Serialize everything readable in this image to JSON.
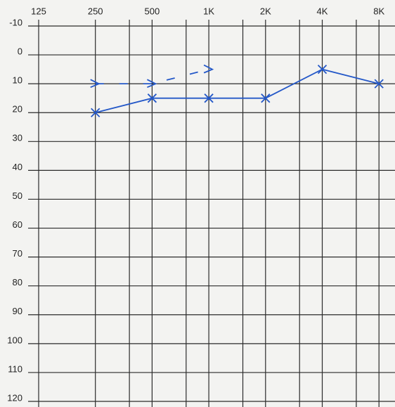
{
  "chart_data": {
    "type": "line",
    "categories": [
      "125",
      "250",
      "500",
      "1K",
      "2K",
      "4K",
      "8K"
    ],
    "series": [
      {
        "color": "#2458c8",
        "marker": "x",
        "dashed": false,
        "values": [
          null,
          20,
          15,
          15,
          15,
          5,
          10
        ]
      },
      {
        "color": "#2458c8",
        "marker": ">",
        "dashed": true,
        "values": [
          null,
          10,
          10,
          5,
          null,
          null,
          null
        ]
      }
    ],
    "ylim": [
      -10,
      120
    ],
    "y_reversed": true,
    "yticks": [
      -10,
      0,
      10,
      20,
      30,
      40,
      50,
      60,
      70,
      80,
      90,
      100,
      110,
      120
    ],
    "grid": true
  }
}
